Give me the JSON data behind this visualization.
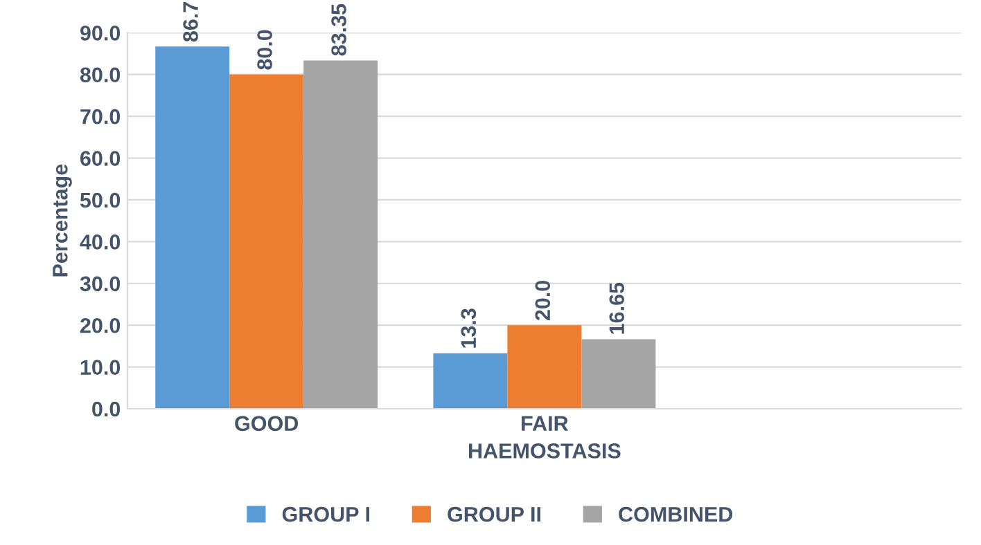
{
  "chart_data": {
    "type": "bar",
    "xlabel": "HAEMOSTASIS",
    "ylabel": "Percentage",
    "categories": [
      "GOOD",
      "FAIR",
      null
    ],
    "series": [
      {
        "name": "GROUP I",
        "color": "#5b9bd5",
        "values": [
          86.7,
          13.3,
          null
        ],
        "value_labels": [
          "86.7",
          "13.3",
          null
        ]
      },
      {
        "name": "GROUP II",
        "color": "#ed7d31",
        "values": [
          80.0,
          20.0,
          null
        ],
        "value_labels": [
          "80.0",
          "20.0",
          null
        ]
      },
      {
        "name": "COMBINED",
        "color": "#a5a5a5",
        "values": [
          83.35,
          16.65,
          null
        ],
        "value_labels": [
          "83.35",
          "16.65",
          null
        ]
      }
    ],
    "ylim": [
      0,
      90
    ],
    "yticks": [
      {
        "value": 0,
        "label": "0.0"
      },
      {
        "value": 10,
        "label": "10.0"
      },
      {
        "value": 20,
        "label": "20.0"
      },
      {
        "value": 30,
        "label": "30.0"
      },
      {
        "value": 40,
        "label": "40.0"
      },
      {
        "value": 50,
        "label": "50.0"
      },
      {
        "value": 60,
        "label": "60.0"
      },
      {
        "value": 70,
        "label": "70.0"
      },
      {
        "value": 80,
        "label": "80.0"
      },
      {
        "value": 90,
        "label": "90.0"
      }
    ],
    "grid": "y",
    "legend": "bottom"
  }
}
